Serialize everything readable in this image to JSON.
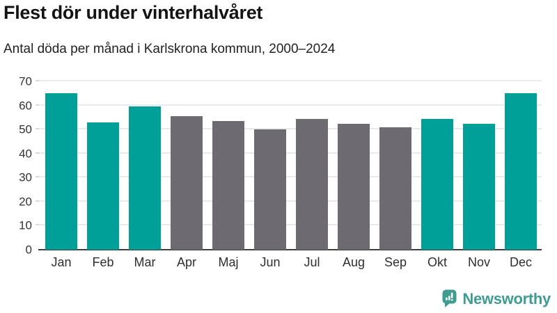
{
  "header": {
    "title": "Flest dör under vinterhalvåret",
    "subtitle": "Antal döda per månad i Karlskrona kommun, 2000–2024"
  },
  "chart_data": {
    "type": "bar",
    "title": "Flest dör under vinterhalvåret",
    "subtitle": "Antal döda per månad i Karlskrona kommun, 2000–2024",
    "categories": [
      "Jan",
      "Feb",
      "Mar",
      "Apr",
      "Maj",
      "Jun",
      "Jul",
      "Aug",
      "Sep",
      "Okt",
      "Nov",
      "Dec"
    ],
    "values": [
      65,
      53,
      59.5,
      55.5,
      53.5,
      50,
      54.5,
      52.5,
      51,
      54.5,
      52.5,
      65
    ],
    "bar_colors": [
      "#00a099",
      "#00a099",
      "#00a099",
      "#6d6a72",
      "#6d6a72",
      "#6d6a72",
      "#6d6a72",
      "#6d6a72",
      "#6d6a72",
      "#00a099",
      "#00a099",
      "#00a099"
    ],
    "xlabel": "",
    "ylabel": "",
    "ylim": [
      0,
      70
    ],
    "yticks": [
      0,
      10,
      20,
      30,
      40,
      50,
      60,
      70
    ],
    "grid": "horizontal",
    "legend": "none",
    "highlight_color": "#00a099",
    "base_color": "#6d6a72"
  },
  "footer": {
    "brand": "Newsworthy",
    "logo_icon": "bar-chart-speech-bubble-icon",
    "brand_color": "#3e9c92"
  },
  "colors": {
    "background": "#ffffff",
    "title_text": "#141414",
    "subtitle_text": "#222222",
    "axis_line": "#3d3d3d",
    "gridline": "#e9e8ea",
    "tick_label": "#333333"
  }
}
